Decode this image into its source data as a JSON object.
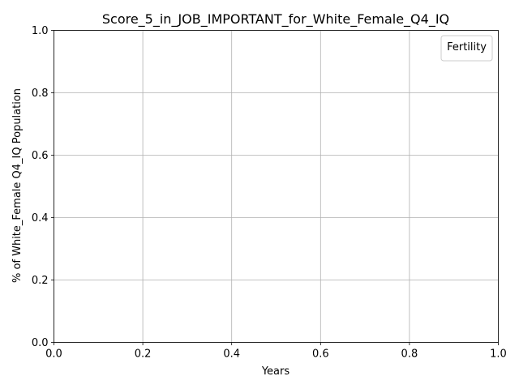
{
  "chart_data": {
    "type": "line",
    "title": "Score_5_in_JOB_IMPORTANT_for_White_Female_Q4_IQ",
    "xlabel": "Years",
    "ylabel": "% of White_Female Q4_IQ Population",
    "xlim": [
      0.0,
      1.0
    ],
    "ylim": [
      0.0,
      1.0
    ],
    "x_ticks": [
      "0.0",
      "0.2",
      "0.4",
      "0.6",
      "0.8",
      "1.0"
    ],
    "y_ticks": [
      "0.0",
      "0.2",
      "0.4",
      "0.6",
      "0.8",
      "1.0"
    ],
    "grid": true,
    "legend": {
      "title": "Fertility",
      "position": "top-right",
      "entries": []
    },
    "series": []
  }
}
